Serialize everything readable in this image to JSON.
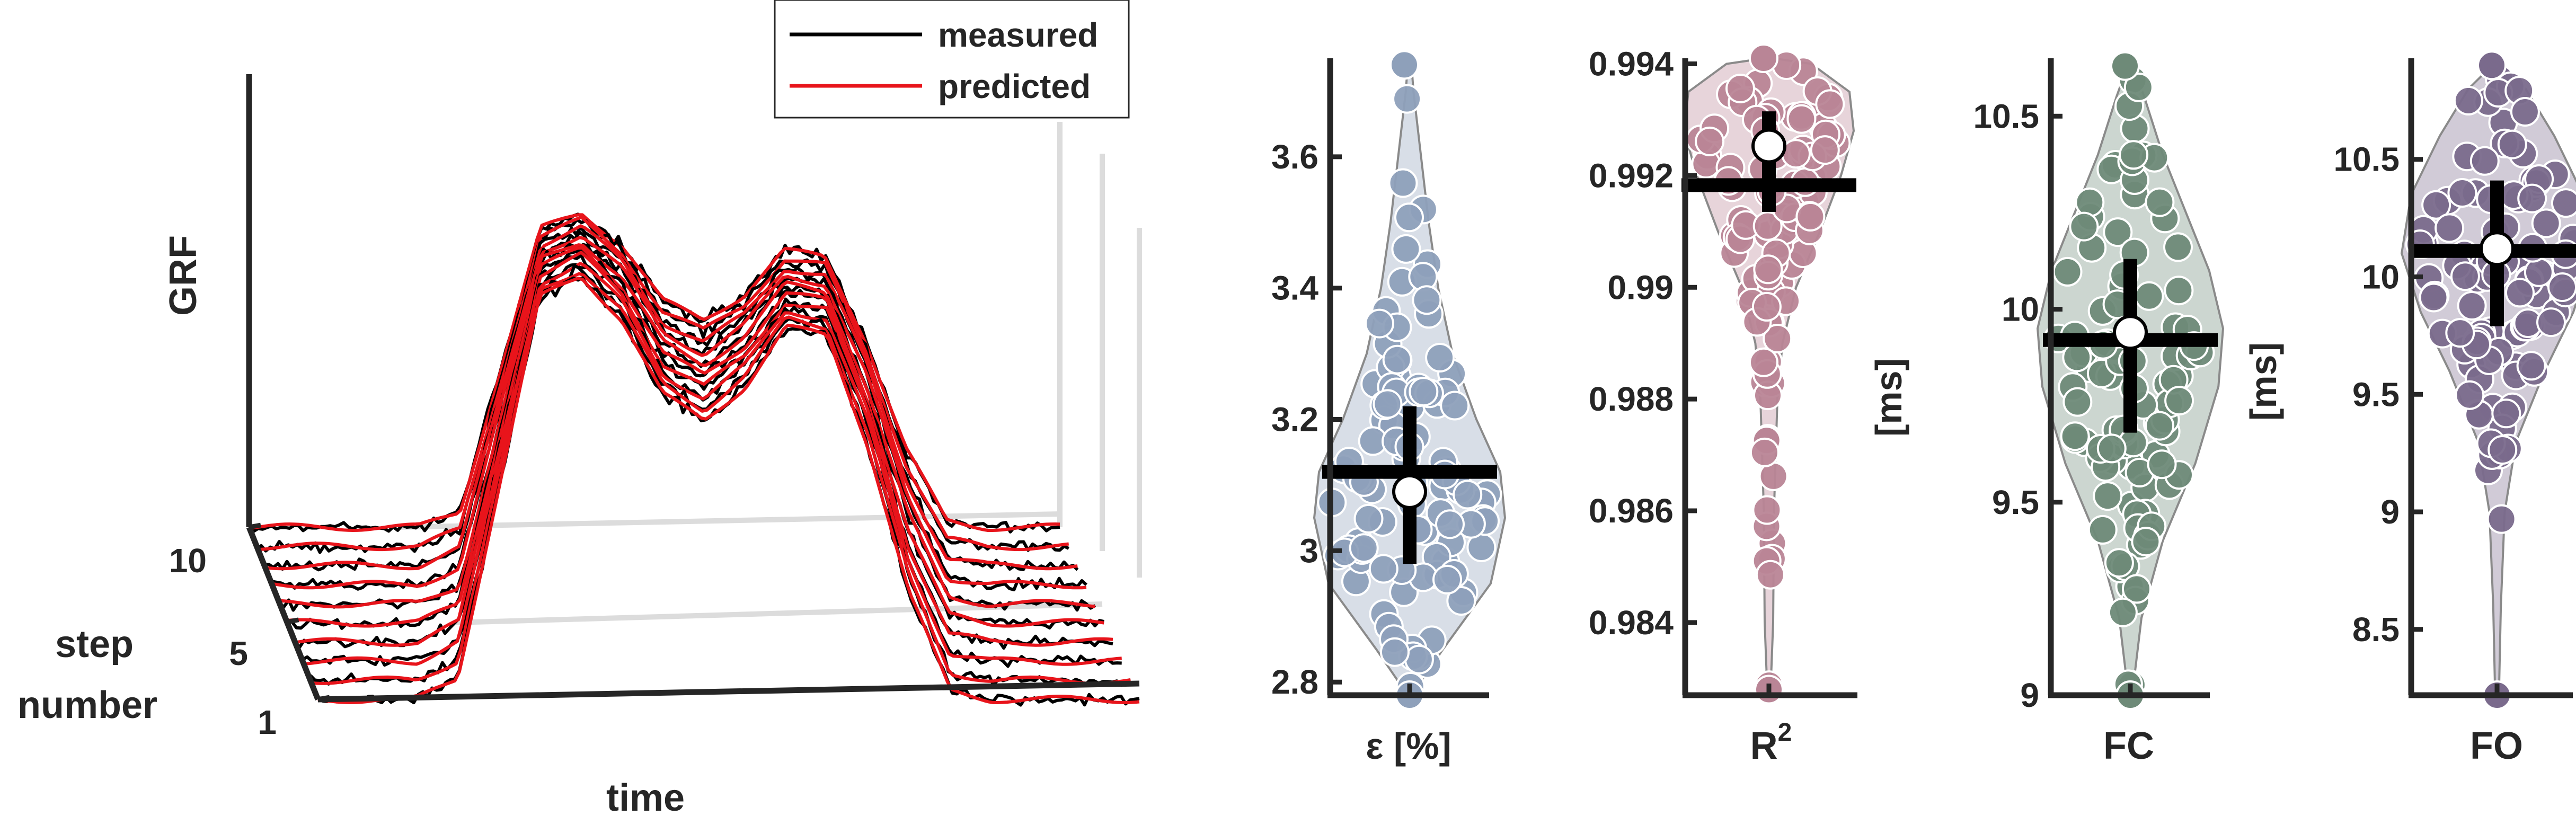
{
  "colors": {
    "axis": "#262626",
    "measured": "#000000",
    "predicted": "#e8141b",
    "grid": "#dcdcdc",
    "marker_fill": "#ffffff",
    "violin_eps": "#8ea0ba",
    "violin_r2": "#b98596",
    "violin_fc": "#6e8a78",
    "violin_fo": "#7a6a8c"
  },
  "chart_data": [
    {
      "type": "line",
      "chart": "waterfall-3d",
      "ylabel": "GRF",
      "xlabel": "time",
      "zlabel": [
        "step",
        "number"
      ],
      "z_ticks": [
        "10",
        "5",
        "1"
      ],
      "legend": {
        "position": "top",
        "entries": [
          "measured",
          "predicted"
        ]
      },
      "series": [
        {
          "name": "measured"
        },
        {
          "name": "predicted"
        }
      ],
      "steps": 10,
      "x": [
        0,
        0.05,
        0.1,
        0.15,
        0.2,
        0.25,
        0.3,
        0.35,
        0.4,
        0.45,
        0.5,
        0.55,
        0.6,
        0.65,
        0.7,
        0.75,
        0.8,
        0.85,
        0.9,
        0.95,
        1.0
      ],
      "profile_values": [
        0,
        0,
        0,
        0,
        0.05,
        0.5,
        0.95,
        1.0,
        0.9,
        0.72,
        0.66,
        0.74,
        0.88,
        0.86,
        0.6,
        0.25,
        0.02,
        0,
        0,
        0,
        0
      ]
    },
    {
      "type": "scatter",
      "chart": "violin",
      "xlabel": "ε [%]",
      "ylabel": "",
      "ylim": [
        2.78,
        3.75
      ],
      "yticks": [
        "2.8",
        "3",
        "3.2",
        "3.4",
        "3.6"
      ],
      "ytick_values": [
        2.8,
        3.0,
        3.2,
        3.4,
        3.6
      ],
      "median": 3.09,
      "mean": 3.12,
      "spread": [
        2.98,
        3.22
      ],
      "range": [
        2.78,
        3.74
      ],
      "density": [
        [
          2.78,
          0.02
        ],
        [
          2.85,
          0.35
        ],
        [
          2.95,
          0.85
        ],
        [
          3.05,
          1.0
        ],
        [
          3.12,
          0.95
        ],
        [
          3.2,
          0.7
        ],
        [
          3.3,
          0.45
        ],
        [
          3.4,
          0.3
        ],
        [
          3.5,
          0.2
        ],
        [
          3.6,
          0.12
        ],
        [
          3.7,
          0.04
        ],
        [
          3.74,
          0.02
        ]
      ],
      "n_points": 100
    },
    {
      "type": "scatter",
      "chart": "violin",
      "xlabel": "R",
      "xlabel_sup": "2",
      "ylabel": "",
      "ylim": [
        0.9827,
        0.9941
      ],
      "yticks": [
        "0.984",
        "0.986",
        "0.988",
        "0.99",
        "0.992",
        "0.994"
      ],
      "ytick_values": [
        0.984,
        0.986,
        0.988,
        0.99,
        0.992,
        0.994
      ],
      "median": 0.99253,
      "mean": 0.99183,
      "spread": [
        0.99135,
        0.99315
      ],
      "range": [
        0.9828,
        0.9941
      ],
      "density": [
        [
          0.9828,
          0.02
        ],
        [
          0.984,
          0.05
        ],
        [
          0.986,
          0.06
        ],
        [
          0.988,
          0.1
        ],
        [
          0.989,
          0.16
        ],
        [
          0.99,
          0.32
        ],
        [
          0.991,
          0.6
        ],
        [
          0.992,
          0.85
        ],
        [
          0.9928,
          1.0
        ],
        [
          0.9935,
          0.95
        ],
        [
          0.994,
          0.5
        ],
        [
          0.9941,
          0.05
        ]
      ],
      "n_points": 100
    },
    {
      "type": "scatter",
      "chart": "violin",
      "xlabel": "FC",
      "ylabel": "[ms]",
      "ylim": [
        9.0,
        10.65
      ],
      "yticks": [
        "9",
        "9.5",
        "10",
        "10.5"
      ],
      "ytick_values": [
        9.0,
        9.5,
        10.0,
        10.5
      ],
      "median": 9.94,
      "mean": 9.92,
      "spread": [
        9.68,
        10.13
      ],
      "range": [
        9.0,
        10.63
      ],
      "density": [
        [
          9.0,
          0.02
        ],
        [
          9.2,
          0.12
        ],
        [
          9.4,
          0.35
        ],
        [
          9.6,
          0.7
        ],
        [
          9.8,
          0.95
        ],
        [
          9.95,
          1.0
        ],
        [
          10.1,
          0.85
        ],
        [
          10.25,
          0.6
        ],
        [
          10.4,
          0.35
        ],
        [
          10.55,
          0.15
        ],
        [
          10.63,
          0.03
        ]
      ],
      "n_points": 100
    },
    {
      "type": "scatter",
      "chart": "violin",
      "xlabel": "FO",
      "ylabel": "[ms]",
      "ylim": [
        8.22,
        10.93
      ],
      "yticks": [
        "8.5",
        "9",
        "9.5",
        "10",
        "10.5"
      ],
      "ytick_values": [
        8.5,
        9.0,
        9.5,
        10.0,
        10.5
      ],
      "median": 10.12,
      "mean": 10.11,
      "spread": [
        9.79,
        10.41
      ],
      "range": [
        8.22,
        10.9
      ],
      "density": [
        [
          8.22,
          0.02
        ],
        [
          8.6,
          0.04
        ],
        [
          9.0,
          0.08
        ],
        [
          9.3,
          0.2
        ],
        [
          9.6,
          0.5
        ],
        [
          9.85,
          0.8
        ],
        [
          10.1,
          1.0
        ],
        [
          10.35,
          0.9
        ],
        [
          10.6,
          0.6
        ],
        [
          10.8,
          0.3
        ],
        [
          10.9,
          0.05
        ]
      ],
      "n_points": 100
    }
  ]
}
